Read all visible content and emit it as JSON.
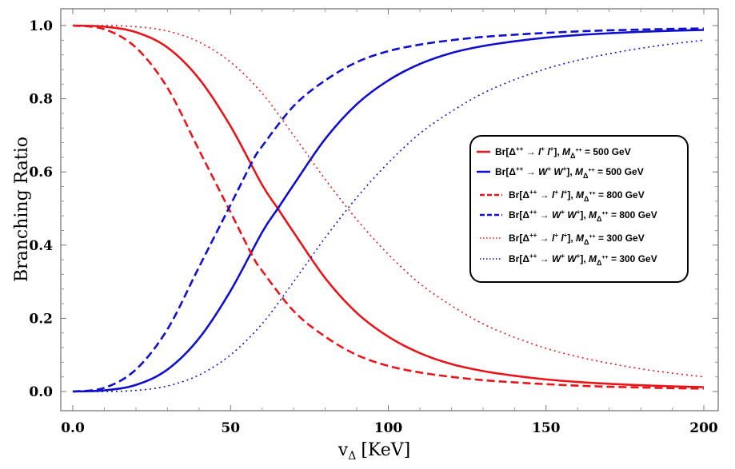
{
  "chart_data": {
    "type": "line",
    "title": "",
    "xlabel": "v",
    "xlabel_sub": "Δ",
    "xlabel_unit": "[KeV]",
    "ylabel": "Branching Ratio",
    "xlim": [
      0,
      200
    ],
    "ylim": [
      0,
      1
    ],
    "xticks": [
      0,
      50,
      100,
      150,
      200
    ],
    "xtick_labels": [
      "0.0",
      "50",
      "100",
      "150",
      "200"
    ],
    "yticks": [
      0,
      0.2,
      0.4,
      0.6,
      0.8,
      1.0
    ],
    "ytick_labels": [
      "0.0",
      "0.2",
      "0.4",
      "0.6",
      "0.8",
      "1.0"
    ],
    "grid": false,
    "legend_position": "right",
    "series": [
      {
        "name": "Br[Δ⁺⁺ → l⁺ l⁺], MΔ⁺⁺ = 500 GeV",
        "color": "#e8161b",
        "style": "solid",
        "x": [
          0,
          10,
          20,
          30,
          40,
          50,
          60,
          65,
          70,
          80,
          90,
          100,
          110,
          120,
          130,
          140,
          150,
          160,
          170,
          180,
          190,
          200
        ],
        "y": [
          1.0,
          0.997,
          0.982,
          0.94,
          0.855,
          0.725,
          0.565,
          0.5,
          0.435,
          0.31,
          0.215,
          0.15,
          0.105,
          0.075,
          0.056,
          0.043,
          0.033,
          0.026,
          0.021,
          0.017,
          0.014,
          0.012
        ]
      },
      {
        "name": "Br[Δ⁺⁺ → W⁺ W⁺], MΔ⁺⁺ = 500 GeV",
        "color": "#1010cc",
        "style": "solid",
        "x": [
          0,
          10,
          20,
          30,
          40,
          50,
          60,
          65,
          70,
          80,
          90,
          100,
          110,
          120,
          130,
          140,
          150,
          160,
          170,
          180,
          190,
          200
        ],
        "y": [
          0.0,
          0.003,
          0.018,
          0.06,
          0.145,
          0.275,
          0.435,
          0.5,
          0.565,
          0.69,
          0.785,
          0.85,
          0.895,
          0.925,
          0.944,
          0.957,
          0.967,
          0.974,
          0.979,
          0.983,
          0.986,
          0.988
        ]
      },
      {
        "name": "Br[Δ⁺⁺ → l⁺ l⁺], MΔ⁺⁺ = 800 GeV",
        "color": "#e8161b",
        "style": "dashed",
        "x": [
          0,
          10,
          20,
          30,
          40,
          50,
          57,
          60,
          70,
          80,
          90,
          100,
          110,
          120,
          130,
          140,
          150,
          160,
          170,
          180,
          190,
          200
        ],
        "y": [
          1.0,
          0.99,
          0.94,
          0.83,
          0.66,
          0.49,
          0.37,
          0.33,
          0.22,
          0.15,
          0.1,
          0.07,
          0.052,
          0.04,
          0.031,
          0.025,
          0.02,
          0.016,
          0.013,
          0.011,
          0.009,
          0.008
        ]
      },
      {
        "name": "Br[Δ⁺⁺ → W⁺ W⁺], MΔ⁺⁺ = 800 GeV",
        "color": "#1010cc",
        "style": "dashed",
        "x": [
          0,
          10,
          20,
          30,
          40,
          50,
          57,
          60,
          70,
          80,
          90,
          100,
          110,
          120,
          130,
          140,
          150,
          160,
          170,
          180,
          190,
          200
        ],
        "y": [
          0.0,
          0.01,
          0.06,
          0.17,
          0.34,
          0.51,
          0.63,
          0.67,
          0.78,
          0.85,
          0.9,
          0.93,
          0.948,
          0.96,
          0.969,
          0.975,
          0.98,
          0.984,
          0.987,
          0.989,
          0.991,
          0.992
        ]
      },
      {
        "name": "Br[Δ⁺⁺ → l⁺ l⁺], MΔ⁺⁺ = 300 GeV",
        "color": "#e8161b",
        "style": "dotted",
        "x": [
          0,
          10,
          20,
          30,
          40,
          50,
          60,
          70,
          80,
          90,
          100,
          110,
          120,
          130,
          140,
          150,
          160,
          170,
          180,
          190,
          200
        ],
        "y": [
          1.0,
          1.0,
          0.997,
          0.985,
          0.955,
          0.9,
          0.815,
          0.7,
          0.58,
          0.47,
          0.375,
          0.295,
          0.235,
          0.185,
          0.148,
          0.118,
          0.095,
          0.077,
          0.062,
          0.05,
          0.04
        ]
      },
      {
        "name": "Br[Δ⁺⁺ → W⁺ W⁺], MΔ⁺⁺ = 300 GeV",
        "color": "#1010cc",
        "style": "dotted",
        "x": [
          0,
          10,
          20,
          30,
          40,
          50,
          60,
          70,
          80,
          90,
          100,
          110,
          120,
          130,
          140,
          150,
          160,
          170,
          180,
          190,
          200
        ],
        "y": [
          0.0,
          0.0,
          0.003,
          0.015,
          0.045,
          0.1,
          0.185,
          0.3,
          0.42,
          0.53,
          0.625,
          0.705,
          0.765,
          0.815,
          0.852,
          0.882,
          0.905,
          0.923,
          0.938,
          0.95,
          0.96
        ]
      }
    ],
    "legend": [
      {
        "br": "Br[Δ",
        "sup1": "++",
        "arrow": " → ",
        "p1": "l",
        "p1sup": "+",
        "p2": " l",
        "p2sup": "+",
        "close": "], ",
        "m": "M",
        "msub": "Δ",
        "msubsup": "++",
        "mass": " = 500 GeV"
      },
      {
        "br": "Br[Δ",
        "sup1": "++",
        "arrow": " → ",
        "p1": "W",
        "p1sup": "+",
        "p2": " W",
        "p2sup": "+",
        "close": "], ",
        "m": "M",
        "msub": "Δ",
        "msubsup": "++",
        "mass": " = 500 GeV"
      },
      {
        "br": "Br[Δ",
        "sup1": "++",
        "arrow": " → ",
        "p1": "l",
        "p1sup": "+",
        "p2": " l",
        "p2sup": "+",
        "close": "], ",
        "m": "M",
        "msub": "Δ",
        "msubsup": "++",
        "mass": " = 800 GeV"
      },
      {
        "br": "Br[Δ",
        "sup1": "++",
        "arrow": " → ",
        "p1": "W",
        "p1sup": "+",
        "p2": " W",
        "p2sup": "+",
        "close": "], ",
        "m": "M",
        "msub": "Δ",
        "msubsup": "++",
        "mass": " = 800 GeV"
      },
      {
        "br": "Br[Δ",
        "sup1": "++",
        "arrow": " → ",
        "p1": "l",
        "p1sup": "+",
        "p2": " l",
        "p2sup": "+",
        "close": "], ",
        "m": "M",
        "msub": "Δ",
        "msubsup": "++",
        "mass": " = 300 GeV"
      },
      {
        "br": "Br[Δ",
        "sup1": "++",
        "arrow": " → ",
        "p1": "W",
        "p1sup": "+",
        "p2": " W",
        "p2sup": "+",
        "close": "], ",
        "m": "M",
        "msub": "Δ",
        "msubsup": "++",
        "mass": " = 300 GeV"
      }
    ]
  }
}
